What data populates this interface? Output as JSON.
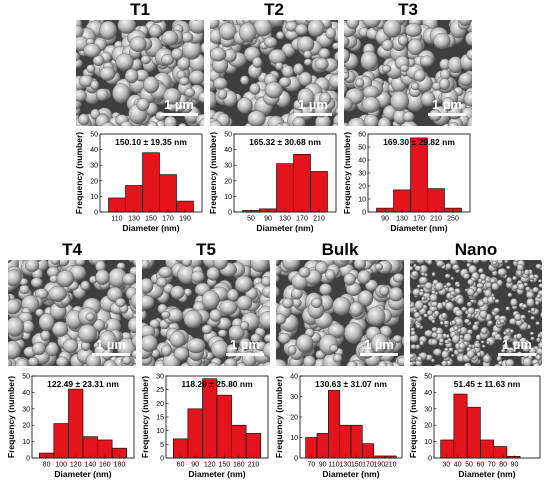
{
  "colors": {
    "bar": "#e3141c",
    "bar_edge": "#000000",
    "sem_base": "#6f6f6f"
  },
  "scale_label": "1 µm",
  "panels": [
    {
      "title": "T1",
      "stat": "150.10 ± 19.35 nm"
    },
    {
      "title": "T2",
      "stat": "165.32 ± 30.68 nm"
    },
    {
      "title": "T3",
      "stat": "169.30 ± 29.82 nm"
    },
    {
      "title": "T4",
      "stat": "122.49 ± 23.31 nm"
    },
    {
      "title": "T5",
      "stat": "118.29 ± 25.80 nm"
    },
    {
      "title": "Bulk",
      "stat": "130.63 ± 31.07 nm"
    },
    {
      "title": "Nano",
      "stat": "51.45 ± 11.63 nm"
    }
  ],
  "chart_data": [
    {
      "type": "bar",
      "title": "T1",
      "xlabel": "Diameter (nm)",
      "ylabel": "Frequency (number)",
      "tick_labels": [
        "110",
        "130",
        "150",
        "170",
        "190"
      ],
      "values": [
        9,
        17,
        38,
        24,
        7
      ],
      "ylim": [
        0,
        50
      ],
      "yticks": [
        0,
        10,
        20,
        30,
        40,
        50
      ]
    },
    {
      "type": "bar",
      "title": "T2",
      "xlabel": "Diameter (nm)",
      "ylabel": "Frequency (number)",
      "tick_labels": [
        "50",
        "90",
        "130",
        "170",
        "210"
      ],
      "values": [
        1,
        2,
        31,
        37,
        26
      ],
      "ylim": [
        0,
        50
      ],
      "yticks": [
        0,
        10,
        20,
        30,
        40,
        50
      ]
    },
    {
      "type": "bar",
      "title": "T3",
      "xlabel": "Diameter (nm)",
      "ylabel": "Frequency (number)",
      "tick_labels": [
        "90",
        "130",
        "170",
        "210",
        "250"
      ],
      "values": [
        3,
        17,
        57,
        18,
        3
      ],
      "ylim": [
        0,
        60
      ],
      "yticks": [
        0,
        10,
        20,
        30,
        40,
        50,
        60
      ]
    },
    {
      "type": "bar",
      "title": "T4",
      "xlabel": "Diameter (nm)",
      "ylabel": "Frequency (number)",
      "tick_labels": [
        "80",
        "100",
        "120",
        "140",
        "160",
        "180"
      ],
      "values": [
        3,
        21,
        42,
        13,
        11,
        6
      ],
      "ylim": [
        0,
        50
      ],
      "yticks": [
        0,
        10,
        20,
        30,
        40,
        50
      ]
    },
    {
      "type": "bar",
      "title": "T5",
      "xlabel": "Diameter (nm)",
      "ylabel": "Frequency (number)",
      "tick_labels": [
        "60",
        "90",
        "120",
        "150",
        "180",
        "210"
      ],
      "values": [
        7,
        18,
        29,
        23,
        12,
        9
      ],
      "ylim": [
        0,
        30
      ],
      "yticks": [
        0,
        5,
        10,
        15,
        20,
        25,
        30
      ]
    },
    {
      "type": "bar",
      "title": "Bulk",
      "xlabel": "Diameter (nm)",
      "ylabel": "Frequency (number)",
      "tick_labels": [
        "70",
        "90",
        "110",
        "130",
        "150",
        "170",
        "190",
        "210"
      ],
      "values": [
        10,
        12,
        33,
        16,
        16,
        7,
        1,
        1
      ],
      "ylim": [
        0,
        40
      ],
      "yticks": [
        0,
        10,
        20,
        30,
        40
      ]
    },
    {
      "type": "bar",
      "title": "Nano",
      "xlabel": "Diameter (nm)",
      "ylabel": "Frequency (number)",
      "tick_labels": [
        "30",
        "40",
        "50",
        "60",
        "70",
        "80",
        "90"
      ],
      "values": [
        11,
        39,
        31,
        11,
        7,
        1
      ],
      "ylim": [
        0,
        50
      ],
      "yticks": [
        0,
        10,
        20,
        30,
        40,
        50
      ]
    }
  ]
}
